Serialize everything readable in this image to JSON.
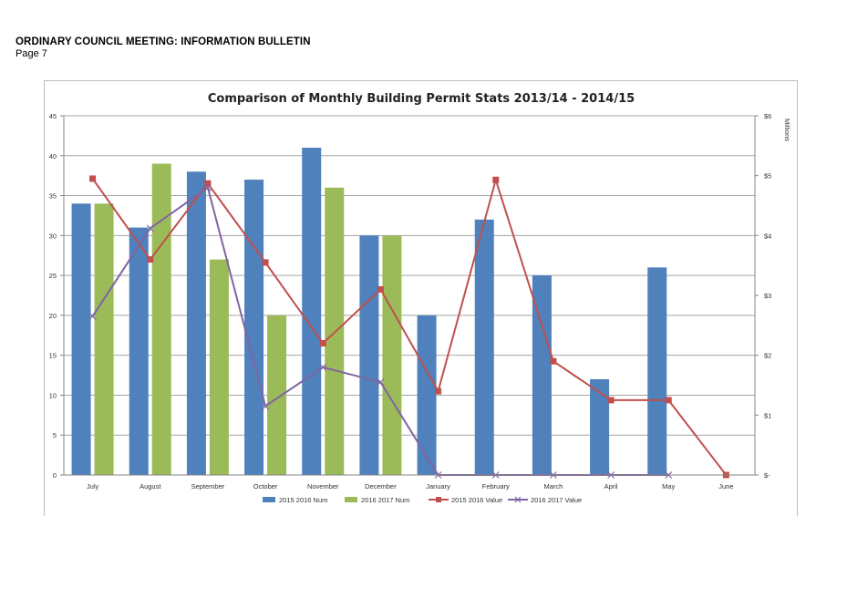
{
  "document": {
    "header": "ORDINARY COUNCIL MEETING: INFORMATION BULLETIN",
    "page": "Page 7"
  },
  "chart_data": {
    "type": "bar",
    "title": "Comparison of Monthly Building Permit Stats 2013/14 - 2014/15",
    "categories": [
      "July",
      "August",
      "September",
      "October",
      "November",
      "December",
      "January",
      "February",
      "March",
      "April",
      "May",
      "June"
    ],
    "y_left": {
      "min": 0,
      "max": 45,
      "ticks": [
        "0",
        "5",
        "10",
        "15",
        "20",
        "25",
        "30",
        "35",
        "40",
        "45"
      ]
    },
    "y_right": {
      "label": "Millions",
      "min": 0,
      "max": 6,
      "ticks": [
        "$-",
        "$1",
        "$2",
        "$3",
        "$4",
        "$5",
        "$6"
      ]
    },
    "grid": true,
    "legend_position": "bottom",
    "series": [
      {
        "name": "2015 2016 Num",
        "type": "bar",
        "axis": "left",
        "color": "#4f81bd",
        "values": [
          34,
          31,
          38,
          37,
          41,
          30,
          20,
          32,
          25,
          12,
          26,
          null
        ]
      },
      {
        "name": "2016 2017 Num",
        "type": "bar",
        "axis": "left",
        "color": "#9bbb59",
        "values": [
          34,
          39,
          27,
          20,
          36,
          30,
          null,
          null,
          null,
          null,
          null,
          null
        ]
      },
      {
        "name": "2015 2016 Value",
        "type": "line",
        "axis": "right",
        "color": "#c0504d",
        "marker": "square",
        "values": [
          4.95,
          3.6,
          4.87,
          3.55,
          2.2,
          3.1,
          1.4,
          4.93,
          1.9,
          1.25,
          1.25,
          0
        ]
      },
      {
        "name": "2016 2017 Value",
        "type": "line",
        "axis": "right",
        "color": "#8064a2",
        "marker": "x",
        "values": [
          2.65,
          4.12,
          4.8,
          1.15,
          1.8,
          1.55,
          0,
          0,
          0,
          0,
          0,
          null
        ]
      }
    ]
  }
}
